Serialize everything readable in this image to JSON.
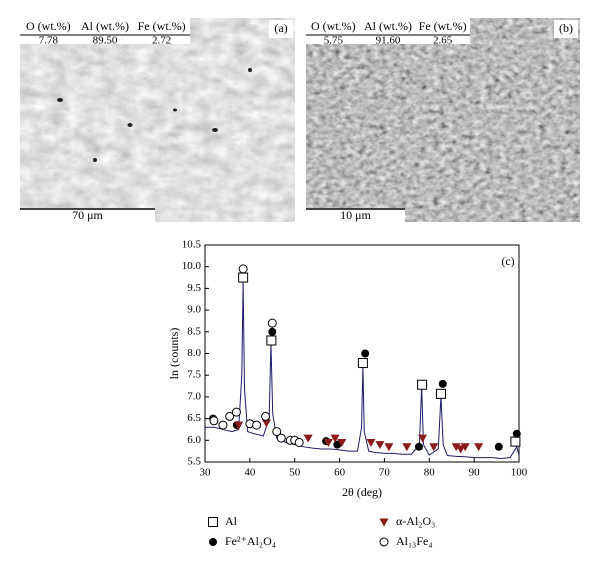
{
  "panels": [
    {
      "label": "(a)",
      "columns": [
        "O (wt.%)",
        "Al (wt.%)",
        "Fe (wt.%)"
      ],
      "values": [
        "7.78",
        "89.50",
        "2.72"
      ],
      "scale_bar": "70 μm"
    },
    {
      "label": "(b)",
      "columns": [
        "O (wt.%)",
        "Al (wt.%)",
        "Fe (wt.%)"
      ],
      "values": [
        "5.75",
        "91.60",
        "2.65"
      ],
      "scale_bar": "10 μm"
    }
  ],
  "chart_data": {
    "type": "scatter",
    "panel_label": "(c)",
    "x_label": "2θ (deg)",
    "y_label": "ln (counts)",
    "xlim": [
      30,
      100
    ],
    "xticks": [
      30,
      40,
      50,
      60,
      70,
      80,
      90,
      100
    ],
    "ylim": [
      5.5,
      10.5
    ],
    "yticks": [
      5.5,
      6.0,
      6.5,
      7.0,
      7.5,
      8.0,
      8.5,
      9.0,
      9.5,
      10.0,
      10.5
    ],
    "trace": {
      "color": "#1c1c6b",
      "x": [
        30,
        32,
        34,
        36,
        37.5,
        38.2,
        38.5,
        38.8,
        39.5,
        41,
        43,
        44.3,
        44.7,
        45.1,
        46,
        48,
        50,
        52,
        54,
        56,
        58,
        60,
        62,
        64,
        64.9,
        65.2,
        65.5,
        66.5,
        68,
        70,
        72,
        74,
        76,
        77.8,
        78.3,
        78.7,
        80,
        82,
        82.6,
        83.1,
        84,
        86,
        88,
        90,
        92,
        94,
        96,
        98,
        99.5,
        100
      ],
      "values": [
        6.3,
        6.3,
        6.25,
        6.2,
        6.25,
        7.5,
        9.65,
        7.2,
        6.2,
        6.15,
        6.1,
        6.5,
        8.25,
        6.6,
        6.05,
        5.95,
        5.9,
        5.85,
        5.82,
        5.8,
        5.8,
        5.78,
        5.75,
        5.75,
        6.3,
        7.72,
        6.2,
        5.75,
        5.72,
        5.7,
        5.7,
        5.68,
        5.68,
        5.9,
        7.25,
        5.9,
        5.66,
        5.8,
        7.02,
        5.9,
        5.65,
        5.63,
        5.62,
        5.6,
        5.6,
        5.6,
        5.58,
        5.6,
        5.85,
        5.65
      ]
    },
    "series": [
      {
        "name": "Al",
        "marker": "square",
        "color": "#000000",
        "x": [
          38.5,
          44.8,
          65.2,
          78.4,
          82.6,
          99.2
        ],
        "values": [
          9.75,
          8.3,
          7.78,
          7.28,
          7.07,
          5.97
        ]
      },
      {
        "name": "Fe²⁺Al₂O₄",
        "marker": "filled-circle",
        "color": "#000000",
        "x": [
          31.8,
          37.1,
          45,
          57,
          59.5,
          65.7,
          77.7,
          83,
          95.5,
          99.5
        ],
        "values": [
          6.5,
          6.35,
          8.5,
          5.98,
          5.9,
          8.0,
          5.85,
          7.3,
          5.85,
          6.15
        ]
      },
      {
        "name": "α-Al₂O₃",
        "marker": "triangle",
        "color": "#8b1a1a",
        "x": [
          37.5,
          43.7,
          53,
          57.5,
          59,
          60.5,
          67,
          69,
          71,
          75,
          78.5,
          81,
          86,
          87,
          88,
          91
        ],
        "values": [
          6.35,
          6.4,
          6.05,
          5.95,
          6.05,
          5.95,
          5.95,
          5.9,
          5.85,
          5.85,
          6.05,
          5.85,
          5.85,
          5.8,
          5.85,
          5.85
        ]
      },
      {
        "name": "Al₁₃Fe₄",
        "marker": "circle",
        "color": "#000000",
        "x": [
          32,
          34,
          35.5,
          37,
          38.5,
          40,
          41.5,
          43.5,
          45,
          46,
          47,
          49,
          50,
          51
        ],
        "values": [
          6.45,
          6.35,
          6.55,
          6.65,
          9.95,
          6.38,
          6.35,
          6.55,
          8.7,
          6.2,
          6.05,
          6.0,
          6.0,
          5.95
        ]
      }
    ]
  }
}
